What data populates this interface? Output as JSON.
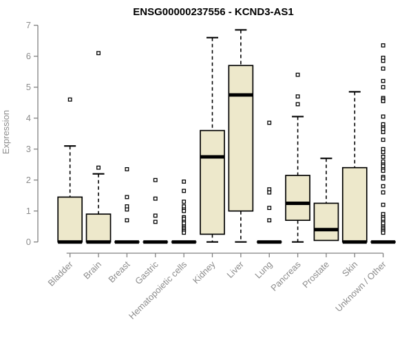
{
  "chart_data": {
    "type": "boxplot",
    "title": "ENSG00000237556 - KCND3-AS1",
    "ylabel": "Expression",
    "xlabel": "",
    "ylim": [
      0,
      7
    ],
    "yticks": [
      0,
      1,
      2,
      3,
      4,
      5,
      6,
      7
    ],
    "grid": false,
    "legend": "none",
    "categories": [
      "Bladder",
      "Brain",
      "Breast",
      "Gastric",
      "Hematopoietic cells",
      "Kidney",
      "Liver",
      "Lung",
      "Pancreas",
      "Prostate",
      "Skin",
      "Unknown / Other"
    ],
    "boxes": [
      {
        "category": "Bladder",
        "whisker_low": 0,
        "q1": 0,
        "median": 0,
        "q3": 1.45,
        "whisker_high": 3.1,
        "outliers": [
          4.6
        ]
      },
      {
        "category": "Brain",
        "whisker_low": 0,
        "q1": 0,
        "median": 0,
        "q3": 0.9,
        "whisker_high": 2.2,
        "outliers": [
          6.1,
          2.4
        ]
      },
      {
        "category": "Breast",
        "whisker_low": 0,
        "q1": 0,
        "median": 0,
        "q3": 0,
        "whisker_high": 0,
        "outliers": [
          2.35,
          1.45,
          1.15,
          1.05,
          0.7
        ]
      },
      {
        "category": "Gastric",
        "whisker_low": 0,
        "q1": 0,
        "median": 0,
        "q3": 0,
        "whisker_high": 0,
        "outliers": [
          2.0,
          1.4,
          0.85,
          0.65
        ]
      },
      {
        "category": "Hematopoietic cells",
        "whisker_low": 0,
        "q1": 0,
        "median": 0,
        "q3": 0,
        "whisker_high": 0,
        "outliers": [
          1.95,
          1.65,
          1.3,
          1.15,
          1.05,
          1.0,
          0.8,
          0.75,
          0.65,
          0.6,
          0.5,
          0.45,
          0.4,
          0.35,
          0.3
        ]
      },
      {
        "category": "Kidney",
        "whisker_low": 0,
        "q1": 0.25,
        "median": 2.75,
        "q3": 3.6,
        "whisker_high": 6.6,
        "outliers": []
      },
      {
        "category": "Liver",
        "whisker_low": 0,
        "q1": 1.0,
        "median": 4.75,
        "q3": 5.7,
        "whisker_high": 6.85,
        "outliers": []
      },
      {
        "category": "Lung",
        "whisker_low": 0,
        "q1": 0,
        "median": 0,
        "q3": 0,
        "whisker_high": 0,
        "outliers": [
          3.85,
          1.7,
          1.6,
          1.1,
          0.7
        ]
      },
      {
        "category": "Pancreas",
        "whisker_low": 0,
        "q1": 0.7,
        "median": 1.25,
        "q3": 2.15,
        "whisker_high": 4.05,
        "outliers": [
          5.4,
          4.7,
          4.45
        ]
      },
      {
        "category": "Prostate",
        "whisker_low": 0,
        "q1": 0.05,
        "median": 0.4,
        "q3": 1.25,
        "whisker_high": 2.7,
        "outliers": []
      },
      {
        "category": "Skin",
        "whisker_low": 0,
        "q1": 0,
        "median": 0,
        "q3": 2.4,
        "whisker_high": 4.85,
        "outliers": []
      },
      {
        "category": "Unknown / Other",
        "whisker_low": 0,
        "q1": 0,
        "median": 0,
        "q3": 0,
        "whisker_high": 0,
        "outliers": [
          6.35,
          5.95,
          5.85,
          5.6,
          5.2,
          5.0,
          4.65,
          4.6,
          4.55,
          4.05,
          3.8,
          3.7,
          3.65,
          3.55,
          3.3,
          3.0,
          2.9,
          2.75,
          2.6,
          2.5,
          2.45,
          2.35,
          2.3,
          2.1,
          2.05,
          1.8,
          1.6,
          1.2,
          0.9,
          0.8,
          0.75,
          0.65,
          0.6,
          0.5,
          0.45,
          0.4,
          0.35,
          0.3
        ]
      }
    ],
    "colors": {
      "box_fill": "#EDE8CB",
      "box_stroke": "#000000",
      "median": "#000000",
      "outlier_fill": "#ffffff",
      "axis_line": "#7f7f7f",
      "axis_text": "#8c8c8c",
      "title": "#000000",
      "background": "#ffffff"
    }
  }
}
